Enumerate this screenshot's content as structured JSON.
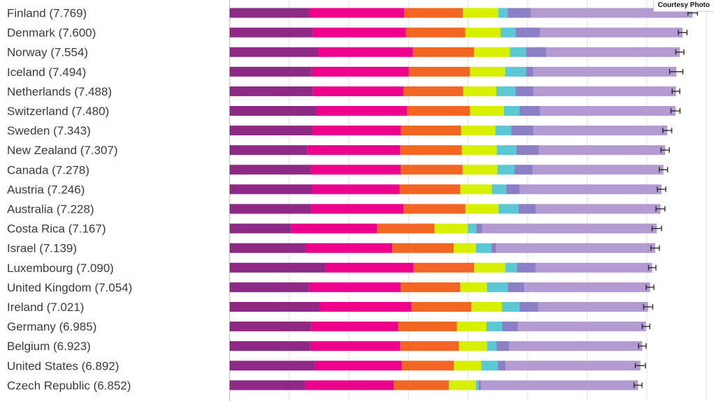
{
  "credit": "Courtesy Photo",
  "chart_data": {
    "type": "bar",
    "orientation": "horizontal",
    "stacked": true,
    "grid": true,
    "categories": [
      "Finland (7.769)",
      "Denmark (7.600)",
      "Norway (7.554)",
      "Iceland (7.494)",
      "Netherlands (7.488)",
      "Switzerland (7.480)",
      "Sweden (7.343)",
      "New Zealand (7.307)",
      "Canada (7.278)",
      "Austria (7.246)",
      "Australia (7.228)",
      "Costa Rica (7.167)",
      "Israel (7.139)",
      "Luxembourg (7.090)",
      "United Kingdom (7.054)",
      "Ireland (7.021)",
      "Germany (6.985)",
      "Belgium (6.923)",
      "United States (6.892)",
      "Czech Republic (6.852)"
    ],
    "totals": [
      7.769,
      7.6,
      7.554,
      7.494,
      7.488,
      7.48,
      7.343,
      7.307,
      7.278,
      7.246,
      7.228,
      7.167,
      7.139,
      7.09,
      7.054,
      7.021,
      6.985,
      6.923,
      6.892,
      6.852
    ],
    "xlim": [
      0,
      8.2
    ],
    "series": [
      {
        "color": "#8e2a86",
        "values": [
          1.34,
          1.383,
          1.488,
          1.38,
          1.396,
          1.452,
          1.387,
          1.303,
          1.365,
          1.376,
          1.372,
          1.034,
          1.276,
          1.609,
          1.333,
          1.499,
          1.373,
          1.356,
          1.433,
          1.269
        ]
      },
      {
        "color": "#ec008c",
        "values": [
          1.587,
          1.573,
          1.582,
          1.624,
          1.522,
          1.526,
          1.487,
          1.557,
          1.505,
          1.475,
          1.548,
          1.441,
          1.455,
          1.479,
          1.538,
          1.553,
          1.454,
          1.504,
          1.457,
          1.487
        ]
      },
      {
        "color": "#f26522",
        "values": [
          0.986,
          0.996,
          1.028,
          1.026,
          0.999,
          1.052,
          1.009,
          1.036,
          1.039,
          1.016,
          1.036,
          0.963,
          1.029,
          1.012,
          0.996,
          0.999,
          0.987,
          0.986,
          0.874,
          0.92
        ]
      },
      {
        "color": "#d6f000",
        "values": [
          0.596,
          0.592,
          0.603,
          0.591,
          0.557,
          0.572,
          0.574,
          0.585,
          0.584,
          0.532,
          0.557,
          0.558,
          0.371,
          0.526,
          0.45,
          0.516,
          0.495,
          0.473,
          0.454,
          0.457
        ]
      },
      {
        "color": "#5bc8d4",
        "values": [
          0.153,
          0.252,
          0.271,
          0.354,
          0.322,
          0.263,
          0.267,
          0.33,
          0.285,
          0.244,
          0.332,
          0.144,
          0.261,
          0.194,
          0.348,
          0.298,
          0.261,
          0.16,
          0.28,
          0.046
        ]
      },
      {
        "color": "#8b7fc6",
        "values": [
          0.393,
          0.41,
          0.341,
          0.118,
          0.298,
          0.343,
          0.373,
          0.38,
          0.308,
          0.226,
          0.29,
          0.093,
          0.082,
          0.316,
          0.278,
          0.31,
          0.265,
          0.21,
          0.128,
          0.036
        ]
      },
      {
        "color": "#b39ad1",
        "values": [
          2.714,
          2.394,
          2.241,
          2.401,
          2.394,
          2.272,
          2.246,
          2.116,
          2.192,
          2.377,
          2.093,
          2.934,
          2.665,
          1.954,
          2.111,
          1.846,
          2.15,
          2.234,
          2.266,
          2.637
        ]
      }
    ],
    "error": [
      0.08,
      0.073,
      0.068,
      0.111,
      0.064,
      0.076,
      0.075,
      0.07,
      0.07,
      0.071,
      0.075,
      0.079,
      0.071,
      0.062,
      0.065,
      0.077,
      0.064,
      0.064,
      0.084,
      0.067
    ]
  }
}
